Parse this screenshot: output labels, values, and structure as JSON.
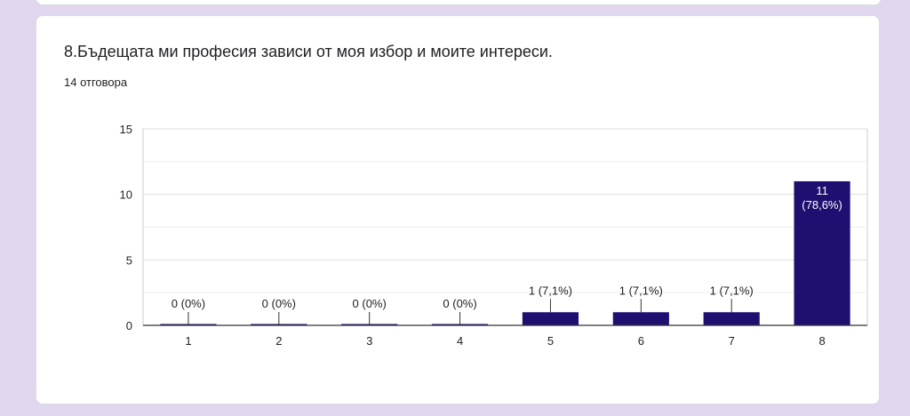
{
  "question": {
    "title": "8.Бъдещата ми професия зависи от моя избор и моите интереси.",
    "responses": "14 отговора"
  },
  "colors": {
    "background": "#e0d7ef",
    "bar": "#1f0f70",
    "grid": "#e5e5e5",
    "axis": "#333333"
  },
  "chart_data": {
    "type": "bar",
    "title": "",
    "xlabel": "",
    "ylabel": "",
    "categories": [
      "1",
      "2",
      "3",
      "4",
      "5",
      "6",
      "7",
      "8"
    ],
    "values": [
      0,
      0,
      0,
      0,
      1,
      1,
      1,
      11
    ],
    "data_labels": [
      "0 (0%)",
      "0 (0%)",
      "0 (0%)",
      "0 (0%)",
      "1 (7,1%)",
      "1 (7,1%)",
      "1 (7,1%)",
      "11\n(78,6%)"
    ],
    "ylim": [
      0,
      15
    ],
    "yticks": [
      0,
      5,
      10,
      15
    ],
    "grid": true,
    "legend": "none"
  }
}
